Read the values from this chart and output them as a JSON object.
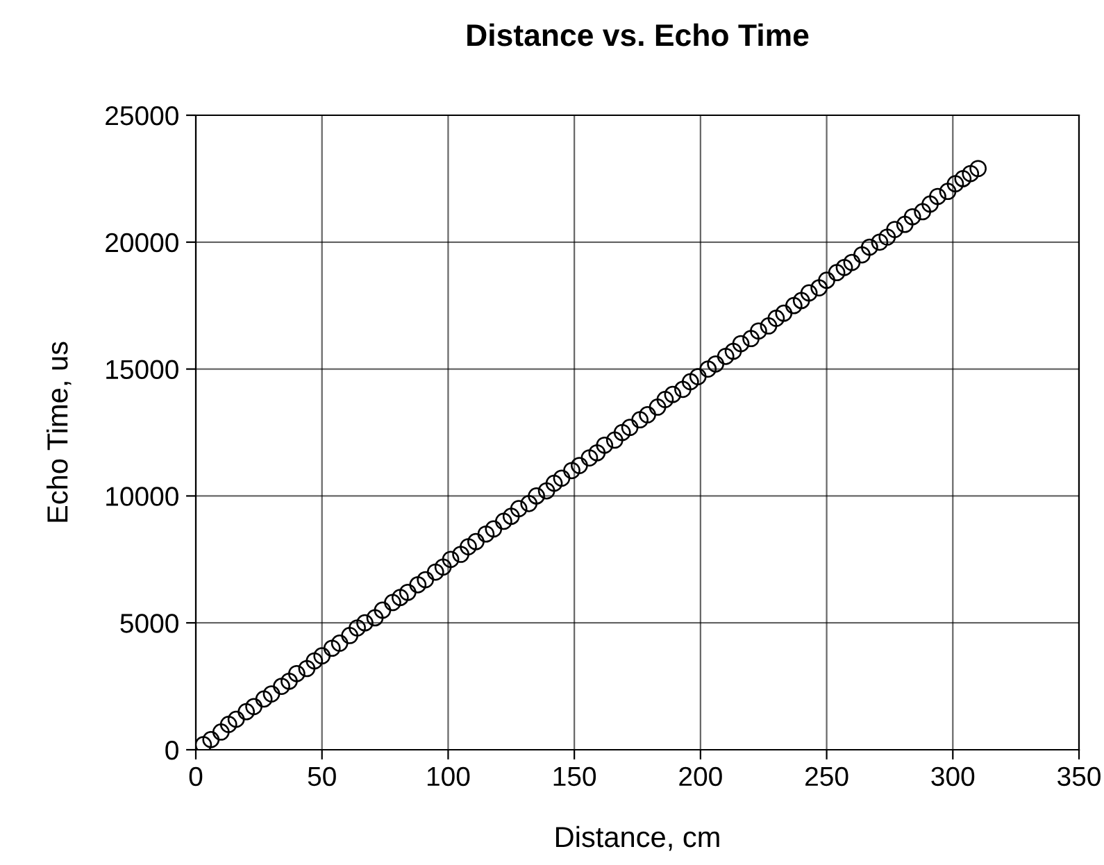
{
  "chart_data": {
    "type": "scatter",
    "title": "Distance vs. Echo Time",
    "xlabel": "Distance, cm",
    "ylabel": "Echo Time, us",
    "x": [
      3,
      6,
      10,
      13,
      16,
      20,
      23,
      27,
      30,
      34,
      37,
      40,
      44,
      47,
      50,
      54,
      57,
      61,
      64,
      67,
      71,
      74,
      78,
      81,
      84,
      88,
      91,
      95,
      98,
      101,
      105,
      108,
      111,
      115,
      118,
      122,
      125,
      128,
      132,
      135,
      139,
      142,
      145,
      149,
      152,
      156,
      159,
      162,
      166,
      169,
      172,
      176,
      179,
      183,
      186,
      189,
      193,
      196,
      199,
      203,
      206,
      210,
      213,
      216,
      220,
      223,
      227,
      230,
      233,
      237,
      240,
      243,
      247,
      250,
      254,
      257,
      260,
      264,
      267,
      271,
      274,
      277,
      281,
      284,
      288,
      291,
      294,
      298,
      301,
      304,
      307,
      310
    ],
    "values": [
      200,
      400,
      700,
      1000,
      1200,
      1500,
      1700,
      2000,
      2200,
      2500,
      2700,
      3000,
      3200,
      3500,
      3700,
      4000,
      4200,
      4500,
      4800,
      5000,
      5200,
      5500,
      5800,
      6000,
      6200,
      6500,
      6700,
      7000,
      7200,
      7500,
      7700,
      8000,
      8200,
      8500,
      8700,
      9000,
      9200,
      9500,
      9700,
      10000,
      10200,
      10500,
      10700,
      11000,
      11200,
      11500,
      11700,
      12000,
      12200,
      12500,
      12700,
      13000,
      13200,
      13500,
      13800,
      14000,
      14200,
      14500,
      14700,
      15000,
      15200,
      15500,
      15700,
      16000,
      16200,
      16500,
      16700,
      17000,
      17200,
      17500,
      17700,
      18000,
      18200,
      18500,
      18800,
      19000,
      19200,
      19500,
      19800,
      20000,
      20200,
      20500,
      20700,
      21000,
      21200,
      21500,
      21800,
      22000,
      22300,
      22500,
      22700,
      22900
    ],
    "color": "#000000",
    "marker": "circle",
    "xlim": [
      0,
      350
    ],
    "xticks": [
      0,
      50,
      100,
      150,
      200,
      250,
      300,
      350
    ],
    "ylim": [
      0,
      25000
    ],
    "yticks": [
      0,
      5000,
      10000,
      15000,
      20000,
      25000
    ],
    "grid": true
  }
}
